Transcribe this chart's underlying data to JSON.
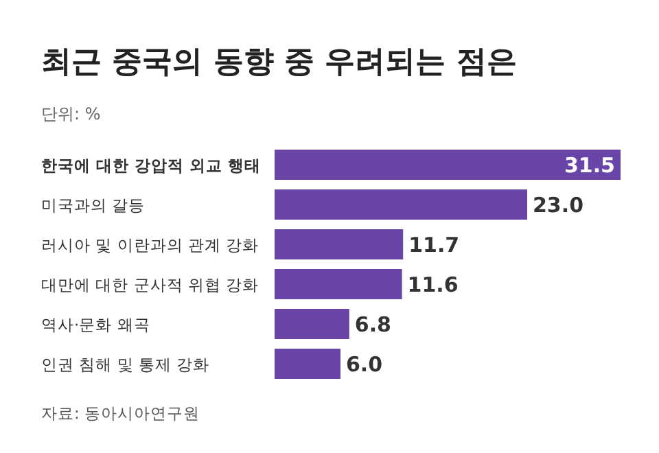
{
  "chart_data": {
    "type": "bar",
    "orientation": "horizontal",
    "title": "최근 중국의 동향 중 우려되는 점은",
    "subtitle": "단위: %",
    "categories": [
      "한국에 대한 강압적 외교 행태",
      "미국과의 갈등",
      "러시아 및 이란과의 관계 강화",
      "대만에 대한 군사적 위협 강화",
      "역사·문화 왜곡",
      "인권 침해 및 통제 강화"
    ],
    "values": [
      31.5,
      23.0,
      11.7,
      11.6,
      6.8,
      6.0
    ],
    "value_labels": [
      "31.5",
      "23.0",
      "11.7",
      "11.6",
      "6.8",
      "6.0"
    ],
    "color": "#6a45a8",
    "annotations": [
      "자료: 동아시아연구원"
    ]
  }
}
